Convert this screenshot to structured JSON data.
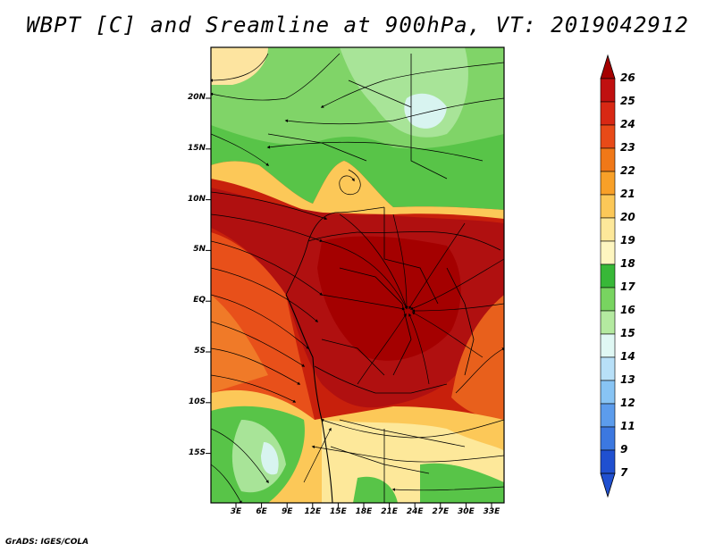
{
  "title": "WBPT [C] and Sreamline at 900hPa, VT: 2019042912",
  "footer": "GrADS: IGES/COLA",
  "axes": {
    "lat_ticks": [
      "20N",
      "15N",
      "10N",
      "5N",
      "EQ",
      "5S",
      "10S",
      "15S"
    ],
    "lon_ticks": [
      "3E",
      "6E",
      "9E",
      "12E",
      "15E",
      "18E",
      "21E",
      "24E",
      "27E",
      "30E",
      "33E"
    ]
  },
  "colorbar": {
    "levels": [
      "26",
      "25",
      "24",
      "23",
      "22",
      "21",
      "20",
      "19",
      "18",
      "17",
      "16",
      "15",
      "14",
      "13",
      "12",
      "11",
      "9",
      "7"
    ],
    "colors": [
      "#a50000",
      "#c01010",
      "#d82814",
      "#e84a18",
      "#f07818",
      "#f8a028",
      "#fcc858",
      "#fde89a",
      "#fef6c0",
      "#38b838",
      "#78d460",
      "#b4eaa0",
      "#e0f8f4",
      "#b8e0f8",
      "#88c4f4",
      "#5c9cec",
      "#3c78e0",
      "#2050d0"
    ]
  },
  "colors": {
    "hot": "#b01010",
    "warm": "#e0501c",
    "mild": "#fcd070",
    "cool": "#50c040",
    "cold": "#d8f4f0"
  }
}
